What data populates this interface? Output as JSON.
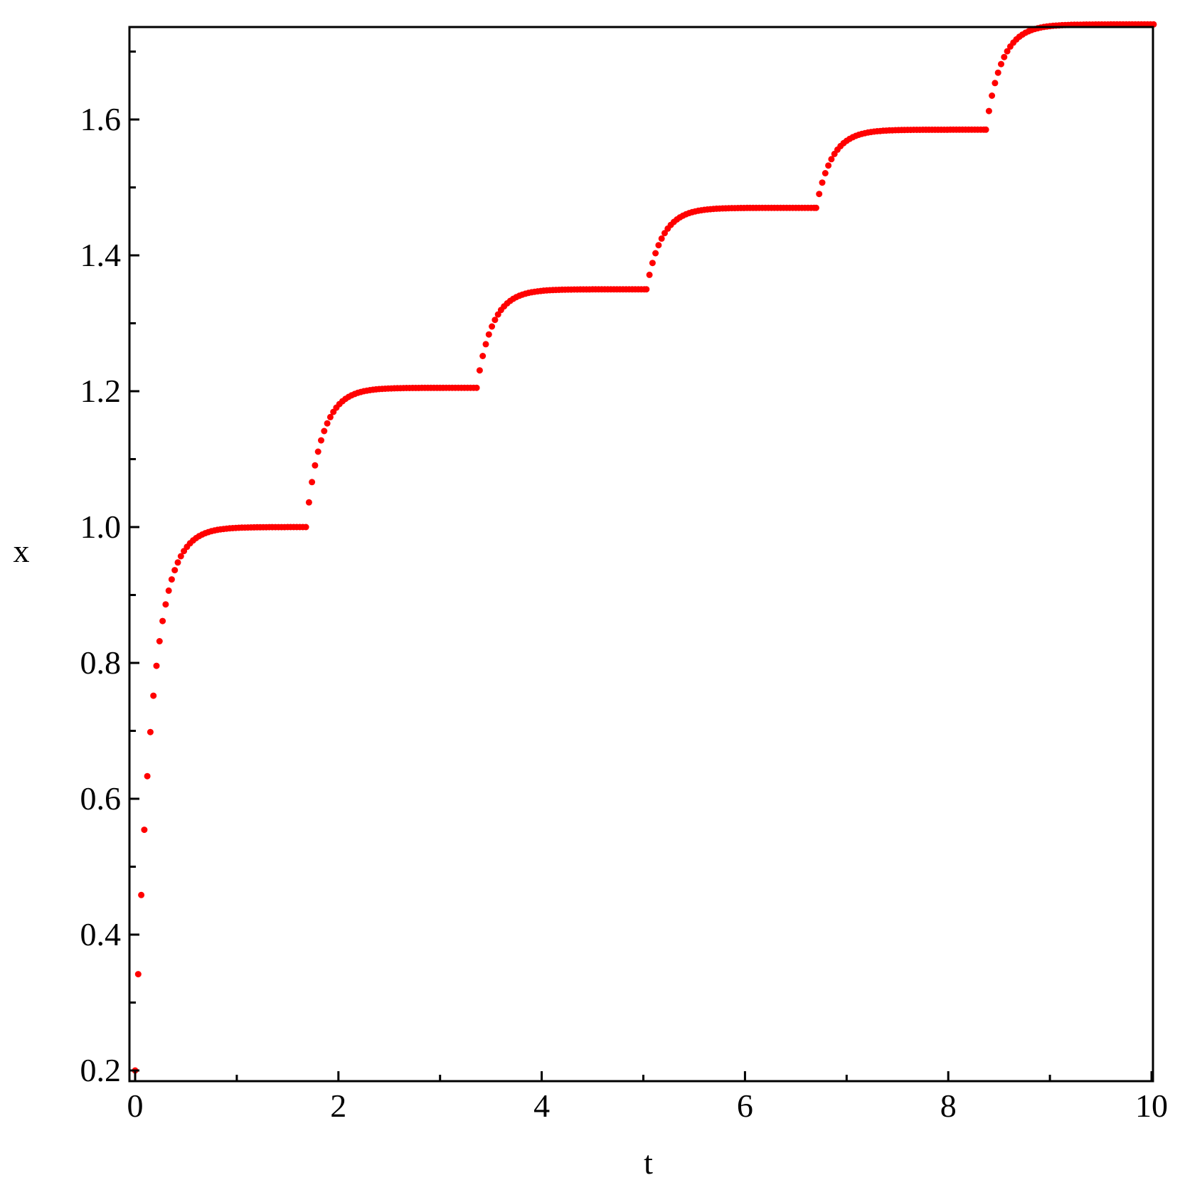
{
  "chart_data": {
    "type": "scatter",
    "title": "",
    "xlabel": "t",
    "ylabel": "x",
    "xlim": [
      0,
      10.1
    ],
    "ylim": [
      0.18,
      1.76
    ],
    "xticks_major": [
      0,
      2,
      4,
      6,
      8,
      10
    ],
    "xtick_labels": [
      "0",
      "2",
      "4",
      "6",
      "8",
      "10"
    ],
    "xticks_minor": [
      1,
      3,
      5,
      7,
      9
    ],
    "yticks_major": [
      0.2,
      0.4,
      0.6,
      0.8,
      1.0,
      1.2,
      1.4,
      1.6
    ],
    "ytick_labels": [
      "0.2",
      "0.4",
      "0.6",
      "0.8",
      "1.0",
      "1.2",
      "1.4",
      "1.6"
    ],
    "yticks_minor": [
      0.3,
      0.5,
      0.7,
      0.9,
      1.1,
      1.3,
      1.5,
      1.7
    ],
    "grid": false,
    "legend": "none",
    "marker_color": "#ff0000",
    "series": [
      {
        "segments": [
          {
            "t_start": 0.0,
            "t_end": 1.67,
            "x_start": 0.2,
            "x_end": 1.0
          },
          {
            "t_start": 1.68,
            "t_end": 3.35,
            "x_start": 1.0,
            "x_end": 1.205
          },
          {
            "t_start": 3.36,
            "t_end": 5.02,
            "x_start": 1.205,
            "x_end": 1.35
          },
          {
            "t_start": 5.03,
            "t_end": 6.69,
            "x_start": 1.35,
            "x_end": 1.47
          },
          {
            "t_start": 6.7,
            "t_end": 8.36,
            "x_start": 1.47,
            "x_end": 1.585
          },
          {
            "t_start": 8.37,
            "t_end": 10.04,
            "x_start": 1.585,
            "x_end": 1.74
          }
        ],
        "step": 0.03,
        "rate": 6.5
      }
    ]
  }
}
